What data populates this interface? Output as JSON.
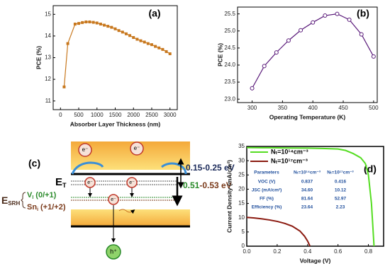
{
  "chart_data": [
    {
      "type": "line",
      "label": "(a)",
      "xlabel": "Absorber Layer Thickness (nm)",
      "ylabel": "PCE (%)",
      "x": [
        100,
        200,
        400,
        500,
        600,
        700,
        800,
        900,
        1000,
        1100,
        1200,
        1300,
        1400,
        1500,
        1600,
        1700,
        1800,
        1900,
        2000,
        2100,
        2200,
        2300,
        2400,
        2500,
        2600,
        2700,
        2800,
        2900,
        3000
      ],
      "values": [
        11.65,
        13.65,
        14.55,
        14.58,
        14.62,
        14.65,
        14.65,
        14.63,
        14.6,
        14.55,
        14.5,
        14.45,
        14.4,
        14.33,
        14.25,
        14.18,
        14.1,
        14.02,
        13.93,
        13.85,
        13.78,
        13.72,
        13.65,
        13.6,
        13.52,
        13.45,
        13.38,
        13.28,
        13.18
      ],
      "color": "#c8781e",
      "marker": "square",
      "xlim": [
        -200,
        3200
      ],
      "ylim": [
        10.6,
        15.4
      ],
      "xticks": [
        0,
        500,
        1000,
        1500,
        2000,
        2500,
        3000
      ],
      "yticks": [
        11,
        12,
        13,
        14,
        15
      ]
    },
    {
      "type": "line",
      "label": "(b)",
      "xlabel": "Operating Temperature (K)",
      "ylabel": "PCE (%)",
      "x": [
        300,
        320,
        340,
        360,
        380,
        400,
        420,
        440,
        460,
        480,
        500
      ],
      "values": [
        23.32,
        23.97,
        24.37,
        24.72,
        25.02,
        25.25,
        25.45,
        25.5,
        25.33,
        24.9,
        24.25
      ],
      "color": "#5a1a7a",
      "marker": "circle",
      "xlim": [
        276,
        506
      ],
      "ylim": [
        22.9,
        25.7
      ],
      "xticks": [
        300,
        350,
        400,
        450,
        500
      ],
      "yticks": [
        {
          "value": 23,
          "label": "23.0"
        },
        23.5,
        {
          "value": 24,
          "label": "24.0"
        },
        24.5,
        {
          "value": 25,
          "label": "25.0"
        },
        25.5
      ]
    },
    {
      "type": "line",
      "label": "(d)",
      "xlabel": "Voltage (V)",
      "ylabel": "Current Density (mA/cm²)",
      "series": [
        {
          "name": "Nₜ=10¹⁴cm⁻³",
          "color": "#55dd22",
          "x": [
            0,
            0.1,
            0.2,
            0.3,
            0.4,
            0.5,
            0.6,
            0.65,
            0.7,
            0.75,
            0.78,
            0.8,
            0.82,
            0.837
          ],
          "values": [
            34.6,
            34.55,
            34.5,
            34.45,
            34.4,
            34.3,
            34.1,
            33.6,
            32.5,
            31.0,
            29,
            25,
            15,
            0
          ]
        },
        {
          "name": "Nₜ=10¹⁷cm⁻³",
          "color": "#8b1a10",
          "x": [
            0,
            0.05,
            0.1,
            0.15,
            0.2,
            0.25,
            0.3,
            0.35,
            0.38,
            0.4,
            0.416
          ],
          "values": [
            10.12,
            9.9,
            9.6,
            9.2,
            8.7,
            8.0,
            7.0,
            5.3,
            3.5,
            1.8,
            0
          ]
        }
      ],
      "xlim": [
        0,
        0.9
      ],
      "ylim": [
        0,
        35
      ],
      "xticks": [
        {
          "value": 0,
          "label": "0.0"
        },
        0.2,
        0.4,
        0.6,
        0.8
      ],
      "yticks": [
        0,
        5,
        10,
        15,
        20,
        25,
        30,
        35
      ],
      "table": {
        "header": [
          "Parameters",
          "Nₜ=10¹⁴cm⁻³",
          "Nₜ=10¹⁷cm⁻³"
        ],
        "rows": [
          [
            "VOC (V)",
            "0.837",
            "0.416"
          ],
          [
            "JSC (mA/cm²)",
            "34.60",
            "10.12"
          ],
          [
            "FF (%)",
            "81.64",
            "52.97"
          ],
          [
            "Efficiency (%)",
            "23.64",
            "2.23"
          ]
        ]
      }
    }
  ],
  "diagram": {
    "label": "(c)",
    "electron": "e⁻",
    "hole": "h⁺",
    "et": "E",
    "et_sub": "T",
    "esrh": "E",
    "esrh_sub": "SRH",
    "range1": "0.15-0.25 eV",
    "range2a": "0.51",
    "range2b": "-0.53 eV",
    "defect1": "V",
    "defect1_sub": "I",
    "defect1_level": "(0/+1)",
    "defect2": "Sn",
    "defect2_sub": "i",
    "defect2_level": "(+1/+2)"
  }
}
